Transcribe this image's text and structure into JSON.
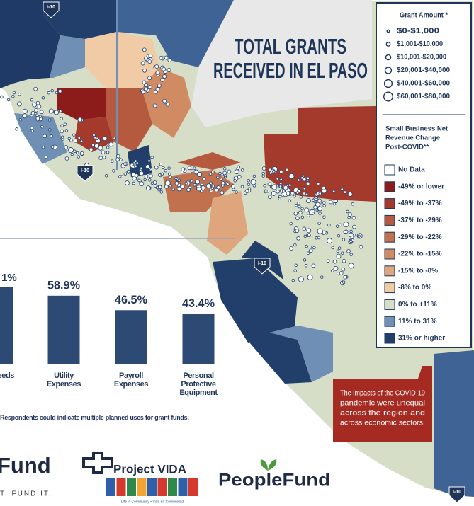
{
  "title_lines": [
    "TOTAL GRANTS",
    "RECEIVED IN EL PASO"
  ],
  "highway_labels": [
    "I-10",
    "I-10",
    "I-10",
    "I-10"
  ],
  "grant_legend": {
    "title": "Grant Amount *",
    "items": [
      "$0-$1,000",
      "$1,001-$10,000",
      "$10,001-$20,000",
      "$20,001-$40,000",
      "$40,001-$60,000",
      "$60,001-$80,000"
    ]
  },
  "revenue_legend": {
    "title_lines": [
      "Small Business Net",
      "Revenue Change",
      "Post-COVID**"
    ],
    "items": [
      {
        "label": "No Data",
        "color": "#ffffff"
      },
      {
        "label": "-49% or lower",
        "color": "#8c1c1a"
      },
      {
        "label": "-49% to -37%",
        "color": "#a43a2b"
      },
      {
        "label": "-37% to -29%",
        "color": "#b55a3f"
      },
      {
        "label": "-29% to -22%",
        "color": "#c2714f"
      },
      {
        "label": "-22% to -15%",
        "color": "#d08b63"
      },
      {
        "label": "-15% to -8%",
        "color": "#dfa67d"
      },
      {
        "label": "-8% to 0%",
        "color": "#f0cba6"
      },
      {
        "label": "0% to +11%",
        "color": "#d6dec8"
      },
      {
        "label": "11% to 31%",
        "color": "#6f8fb5"
      },
      {
        "label": "31% or higher",
        "color": "#223e6a"
      }
    ]
  },
  "chart_data": {
    "type": "bar",
    "categories": [
      "Utility Expenses",
      "Payroll Expenses",
      "Personal Protective Equipment"
    ],
    "values": [
      58.9,
      46.5,
      43.4
    ],
    "value_labels": [
      "58.9%",
      "46.5%",
      "43.4%"
    ],
    "color": "#2c4a74"
  },
  "cut_bar": {
    "value_label": "1%",
    "category": "tal/ Needs"
  },
  "footnote": "Respondents could indicate multiple planned uses for grant funds.",
  "note_lines": [
    "The impacts of the COVID-19",
    "pandemic were unequal",
    "across the region and",
    "across economic sectors."
  ],
  "logos": {
    "fund_left": "Fund",
    "fund_tagline": "T. FUND IT.",
    "vida": "Project VIDA",
    "vida_tagline": "Life in Community • Vida en Comunidad",
    "peoplefund": "PeopleFund"
  }
}
